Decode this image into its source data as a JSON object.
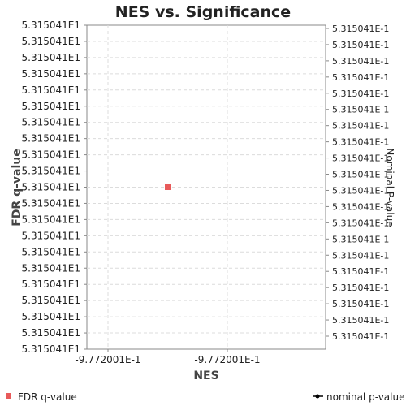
{
  "chart_data": {
    "type": "scatter",
    "title": "NES vs. Significance",
    "xlabel": "NES",
    "ylabel": "FDR q-value",
    "ylabel_right": "Nominal P-value",
    "x_ticks": [
      "-9.772001E-1",
      "-9.772001E-1"
    ],
    "y_ticks_left": [
      "5.315041E1",
      "5.315041E1",
      "5.315041E1",
      "5.315041E1",
      "5.315041E1",
      "5.315041E1",
      "5.315041E1",
      "5.315041E1",
      "5.315041E1",
      "5.315041E1",
      "5.315041E1",
      "5.315041E1",
      "5.315041E1",
      "5.315041E1",
      "5.315041E1",
      "5.315041E1",
      "5.315041E1",
      "5.315041E1",
      "5.315041E1",
      "5.315041E1",
      "5.315041E1"
    ],
    "y_ticks_right": [
      "5.315041E-1",
      "5.315041E-1",
      "5.315041E-1",
      "5.315041E-1",
      "5.315041E-1",
      "5.315041E-1",
      "5.315041E-1",
      "5.315041E-1",
      "5.315041E-1",
      "5.315041E-1",
      "5.315041E-1",
      "5.315041E-1",
      "5.315041E-1",
      "5.315041E-1",
      "5.315041E-1",
      "5.315041E-1",
      "5.315041E-1",
      "5.315041E-1",
      "5.315041E-1",
      "5.315041E-1"
    ],
    "grid": true,
    "legend_position": "bottom",
    "series": [
      {
        "name": "FDR q-value",
        "marker": "square",
        "color": "#e85a5a",
        "points": [
          {
            "x": -0.9772001,
            "y": 53.15041
          }
        ]
      },
      {
        "name": "nominal p-value",
        "marker": "line-dot",
        "color": "#000000",
        "points": []
      }
    ]
  }
}
